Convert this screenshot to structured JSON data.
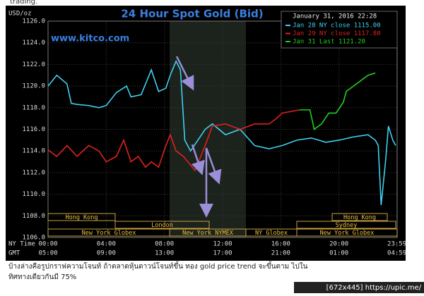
{
  "page": {
    "top_text": "trading.",
    "caption": [
      "บ้างล่างคือรูปกราฟความโจนท์ ถ้าตลาดหุ้นดาวน์โจนท์ขึ้น ทอง gold price trend จะขึ้นตาม ไปใน",
      "ทิศทางเดียวกันมี 75%"
    ],
    "footer": "[672x445] https://upic.me/"
  },
  "chart_data": {
    "type": "line",
    "title": "24 Hour Spot Gold (Bid)",
    "ylabel": "USD/oz",
    "watermark": "www.kitco.com",
    "legend_title": "January 31, 2016 22:28",
    "series": [
      {
        "name": "Jan 28 NY close 1115.00",
        "color": "#3fd0f0",
        "x": [
          0,
          0.6,
          1.3,
          1.6,
          2.0,
          2.8,
          3.5,
          4.0,
          4.7,
          5.4,
          5.7,
          6.4,
          7.1,
          7.6,
          8.1,
          8.4,
          8.8,
          9.1,
          9.4,
          9.8,
          10.8,
          11.3,
          12.2,
          13.2,
          14.2,
          15.2,
          16.1,
          17.1,
          18.1,
          19.1,
          20.0,
          21.0,
          22.0,
          22.5,
          22.7,
          22.9,
          23.2,
          23.4,
          23.7,
          23.9
        ],
        "values": [
          1120,
          1121,
          1120.2,
          1118.4,
          1118.3,
          1118.2,
          1118,
          1118.2,
          1119.4,
          1120,
          1119,
          1119.2,
          1121.5,
          1119.5,
          1119.8,
          1121,
          1122.3,
          1121.5,
          1115,
          1114,
          1116,
          1116.5,
          1115.5,
          1116,
          1114.5,
          1114.2,
          1114.5,
          1115,
          1115.2,
          1114.8,
          1115,
          1115.3,
          1115.5,
          1115,
          1114.5,
          1109,
          1113,
          1116.3,
          1115,
          1114.5
        ]
      },
      {
        "name": "Jan 29 NY close 1117.80",
        "color": "#e02020",
        "x": [
          0,
          0.6,
          1.3,
          2.0,
          2.8,
          3.5,
          4.0,
          4.7,
          5.2,
          5.7,
          6.2,
          6.7,
          7.1,
          7.6,
          8.1,
          8.4,
          8.8,
          9.3,
          10.1,
          10.5,
          10.8,
          11.3,
          12.2,
          13.2,
          14.2,
          15.2,
          15.7,
          16.1,
          17.3
        ],
        "values": [
          1114.1,
          1113.5,
          1114.5,
          1113.5,
          1114.5,
          1114,
          1113,
          1113.5,
          1115,
          1113,
          1113.5,
          1112.5,
          1113,
          1112.5,
          1114.5,
          1115.5,
          1114,
          1113.5,
          1112.2,
          1113.5,
          1114.5,
          1116.3,
          1116.5,
          1116,
          1116.5,
          1116.5,
          1117,
          1117.5,
          1117.8
        ]
      },
      {
        "name": "Jan 31 Last 1121.20",
        "color": "#20d020",
        "x": [
          17.3,
          18.0,
          18.3,
          18.8,
          19.3,
          19.8,
          20.3,
          20.5,
          21.0,
          21.5,
          22.0,
          22.5
        ],
        "values": [
          1117.8,
          1117.8,
          1116,
          1116.5,
          1117.5,
          1117.5,
          1118.5,
          1119.5,
          1120,
          1120.5,
          1121,
          1121.2
        ]
      }
    ],
    "ylim": [
      1106,
      1126
    ],
    "yticks": [
      {
        "value": 1106,
        "label": "1106.0"
      },
      {
        "value": 1108,
        "label": "1108.0"
      },
      {
        "value": 1110,
        "label": "1110.0"
      },
      {
        "value": 1112,
        "label": "1112.0"
      },
      {
        "value": 1114,
        "label": "1114.0"
      },
      {
        "value": 1116,
        "label": "1116.0"
      },
      {
        "value": 1118,
        "label": "1118.0"
      },
      {
        "value": 1120,
        "label": "1120.0"
      },
      {
        "value": 1122,
        "label": "1122.0"
      },
      {
        "value": 1124,
        "label": "1124.0"
      },
      {
        "value": 1126,
        "label": "1126.0"
      }
    ],
    "xlim": [
      0,
      24
    ],
    "xticks": [
      {
        "value": 0,
        "label": "00:00"
      },
      {
        "value": 4,
        "label": "04:00"
      },
      {
        "value": 8,
        "label": "08:00"
      },
      {
        "value": 12,
        "label": "12:00"
      },
      {
        "value": 16,
        "label": "16:00"
      },
      {
        "value": 20,
        "label": "20:00"
      },
      {
        "value": 23.98,
        "label": "23:59"
      }
    ],
    "xtick_labels_gmt": [
      "05:00",
      "09:00",
      "13:00",
      "17:00",
      "21:00",
      "01:00",
      "04:59"
    ],
    "x_row_labels": [
      "NY Time",
      "GMT"
    ],
    "sessions": [
      "Hong Kong",
      "London",
      "New York Globex",
      "New York NYMEX",
      "NY Globex",
      "Sydney",
      "Hong Kong",
      "New York Globex"
    ],
    "grid": true
  }
}
